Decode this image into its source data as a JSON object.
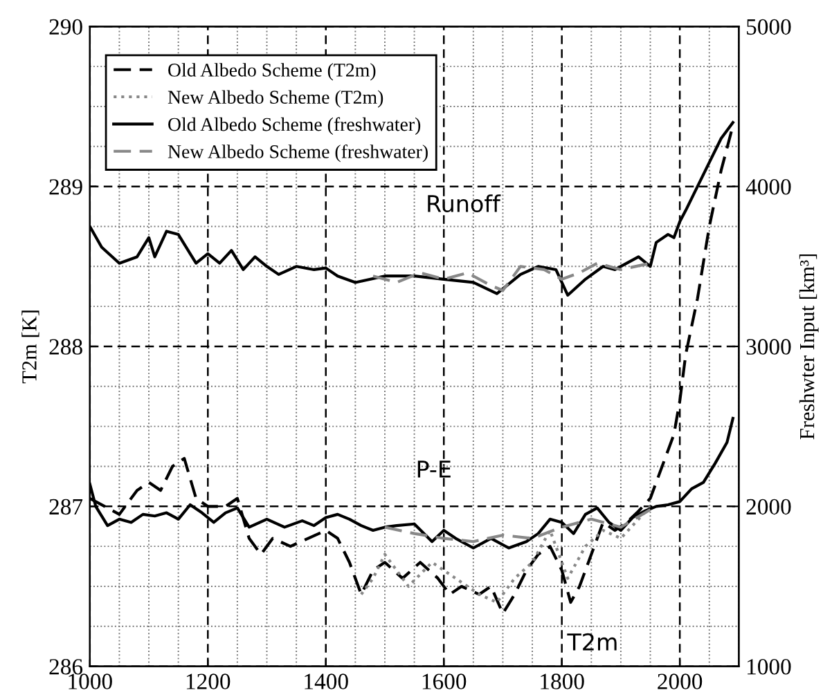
{
  "chart_data": {
    "type": "line",
    "xlim": [
      1000,
      2100
    ],
    "xticks": [
      1000,
      1200,
      1400,
      1600,
      1800,
      2000
    ],
    "ylim": [
      286,
      290
    ],
    "yticks": [
      286,
      287,
      288,
      289,
      290
    ],
    "y2lim": [
      1000,
      5000
    ],
    "y2ticks": [
      1000,
      2000,
      3000,
      4000,
      5000
    ],
    "ylabel": "T2m [K]",
    "y2label": "Freshwter Input [km³]",
    "grid": true,
    "legend": "top left",
    "series": [
      {
        "name": "Old Albedo Scheme (T2m)",
        "color": "#000000",
        "line_style": "dashed",
        "x": [
          1000,
          1050,
          1080,
          1100,
          1120,
          1140,
          1160,
          1180,
          1200,
          1230,
          1250,
          1270,
          1290,
          1310,
          1340,
          1370,
          1400,
          1420,
          1440,
          1460,
          1480,
          1500,
          1530,
          1560,
          1590,
          1610,
          1630,
          1660,
          1680,
          1700,
          1720,
          1740,
          1760,
          1780,
          1800,
          1815,
          1830,
          1850,
          1870,
          1890,
          1910,
          1930,
          1950,
          1970,
          1990,
          2000,
          2010,
          2030,
          2050,
          2070,
          2090
        ],
        "values": [
          287.05,
          286.95,
          287.1,
          287.15,
          287.1,
          287.25,
          287.3,
          287.05,
          287.0,
          287.0,
          287.05,
          286.8,
          286.7,
          286.8,
          286.75,
          286.8,
          286.85,
          286.8,
          286.65,
          286.45,
          286.6,
          286.65,
          286.55,
          286.65,
          286.55,
          286.45,
          286.5,
          286.45,
          286.5,
          286.33,
          286.45,
          286.6,
          286.7,
          286.75,
          286.6,
          286.4,
          286.5,
          286.7,
          286.9,
          286.85,
          286.9,
          286.97,
          287.05,
          287.25,
          287.45,
          287.66,
          287.95,
          288.3,
          288.75,
          289.1,
          289.38
        ]
      },
      {
        "name": "New Albedo Scheme (T2m)",
        "color": "#888888",
        "line_style": "dotted",
        "x": [
          1460,
          1480,
          1500,
          1540,
          1580,
          1620,
          1660,
          1690,
          1720,
          1750,
          1780,
          1810,
          1840,
          1870,
          1900,
          1950
        ],
        "values": [
          286.45,
          286.55,
          286.7,
          286.5,
          286.65,
          286.55,
          286.45,
          286.4,
          286.55,
          286.65,
          286.85,
          286.55,
          286.75,
          286.85,
          286.8,
          287.0
        ]
      },
      {
        "name": "Old Albedo Scheme (freshwater)",
        "color": "#000000",
        "line_style": "solid",
        "axis": "y2",
        "x": [
          1000,
          1020,
          1050,
          1080,
          1100,
          1110,
          1130,
          1150,
          1170,
          1180,
          1200,
          1220,
          1240,
          1260,
          1280,
          1300,
          1320,
          1350,
          1380,
          1400,
          1420,
          1450,
          1500,
          1550,
          1600,
          1650,
          1690,
          1730,
          1760,
          1790,
          1810,
          1840,
          1870,
          1890,
          1910,
          1930,
          1950,
          1960,
          1980,
          1990,
          2000,
          2010,
          2030,
          2050,
          2070,
          2090
        ],
        "values": [
          3750,
          3620,
          3520,
          3560,
          3680,
          3560,
          3720,
          3700,
          3580,
          3520,
          3580,
          3520,
          3600,
          3480,
          3560,
          3500,
          3450,
          3500,
          3480,
          3490,
          3440,
          3400,
          3440,
          3440,
          3420,
          3400,
          3330,
          3450,
          3500,
          3480,
          3320,
          3420,
          3500,
          3480,
          3520,
          3560,
          3500,
          3650,
          3700,
          3680,
          3780,
          3850,
          4000,
          4150,
          4300,
          4400
        ]
      },
      {
        "name": "New Albedo Scheme (freshwater)",
        "color": "#888888",
        "line_style": "dashed",
        "axis": "y2",
        "x": [
          1480,
          1520,
          1560,
          1600,
          1640,
          1680,
          1700,
          1730,
          1770,
          1800,
          1830,
          1860,
          1900,
          1950
        ],
        "values": [
          3440,
          3400,
          3460,
          3420,
          3460,
          3380,
          3350,
          3500,
          3480,
          3420,
          3460,
          3520,
          3480,
          3520
        ]
      },
      {
        "color": "#000000",
        "line_style": "solid",
        "axis": "y2",
        "x": [
          1000,
          1010,
          1030,
          1050,
          1070,
          1090,
          1110,
          1130,
          1150,
          1170,
          1190,
          1210,
          1230,
          1250,
          1270,
          1300,
          1330,
          1360,
          1380,
          1400,
          1420,
          1440,
          1460,
          1480,
          1500,
          1520,
          1550,
          1580,
          1600,
          1620,
          1650,
          1680,
          1710,
          1740,
          1760,
          1780,
          1800,
          1820,
          1840,
          1860,
          1880,
          1900,
          1920,
          1940,
          1960,
          1980,
          2000,
          2020,
          2040,
          2060,
          2080,
          2090
        ],
        "values": [
          2140,
          2000,
          1880,
          1920,
          1900,
          1950,
          1940,
          1960,
          1920,
          2010,
          1960,
          1900,
          1960,
          1990,
          1870,
          1920,
          1870,
          1910,
          1880,
          1930,
          1950,
          1920,
          1880,
          1850,
          1870,
          1880,
          1890,
          1780,
          1850,
          1800,
          1740,
          1800,
          1740,
          1780,
          1830,
          1920,
          1900,
          1830,
          1950,
          1990,
          1900,
          1850,
          1930,
          1970,
          2000,
          2010,
          2030,
          2110,
          2150,
          2270,
          2400,
          2550
        ]
      },
      {
        "color": "#888888",
        "line_style": "dashed",
        "axis": "y2",
        "x": [
          1500,
          1550,
          1600,
          1650,
          1700,
          1750,
          1800,
          1850,
          1900,
          1950
        ],
        "values": [
          1870,
          1830,
          1800,
          1780,
          1820,
          1800,
          1870,
          1920,
          1870,
          1980
        ]
      }
    ],
    "annotations": [
      "Runoff",
      "P-E",
      "T2m"
    ]
  }
}
